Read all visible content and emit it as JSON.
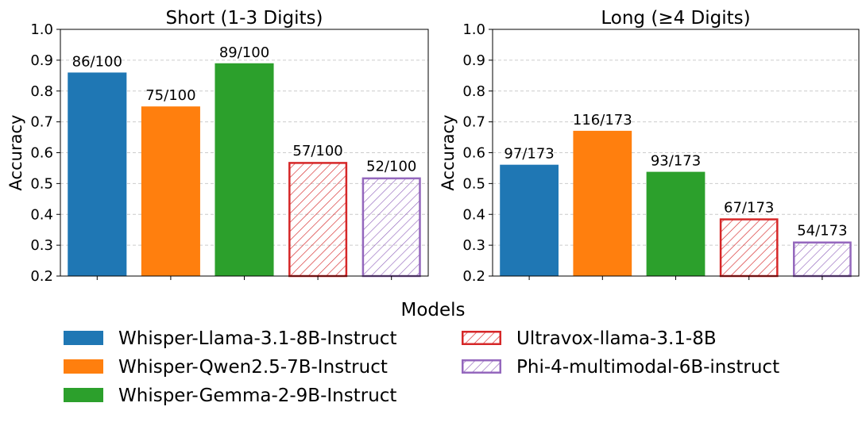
{
  "chart_data": {
    "type": "bar",
    "xlabel": "Models",
    "ylabel": "Accuracy",
    "ylim": [
      0.2,
      1.0
    ],
    "yticks": [
      "0.2",
      "0.3",
      "0.4",
      "0.5",
      "0.6",
      "0.7",
      "0.8",
      "0.9",
      "1.0"
    ],
    "grid": "y-dashed",
    "legend_placement": "bottom",
    "models": [
      {
        "name": "Whisper-Llama-3.1-8B-Instruct",
        "color": "#1f77b4",
        "style": "solid"
      },
      {
        "name": "Whisper-Qwen2.5-7B-Instruct",
        "color": "#ff7f0e",
        "style": "solid"
      },
      {
        "name": "Whisper-Gemma-2-9B-Instruct",
        "color": "#2ca02c",
        "style": "solid"
      },
      {
        "name": "Ultravox-llama-3.1-8B",
        "color": "#d62728",
        "style": "hatched"
      },
      {
        "name": "Phi-4-multimodal-6B-instruct",
        "color": "#9467bd",
        "style": "hatched"
      }
    ],
    "panels": [
      {
        "title": "Short (1-3 Digits)",
        "values": [
          0.86,
          0.75,
          0.89,
          0.57,
          0.52
        ],
        "labels": [
          "86/100",
          "75/100",
          "89/100",
          "57/100",
          "52/100"
        ]
      },
      {
        "title": "Long (≥4 Digits)",
        "values": [
          0.561,
          0.671,
          0.538,
          0.387,
          0.312
        ],
        "labels": [
          "97/173",
          "116/173",
          "93/173",
          "67/173",
          "54/173"
        ]
      }
    ]
  }
}
